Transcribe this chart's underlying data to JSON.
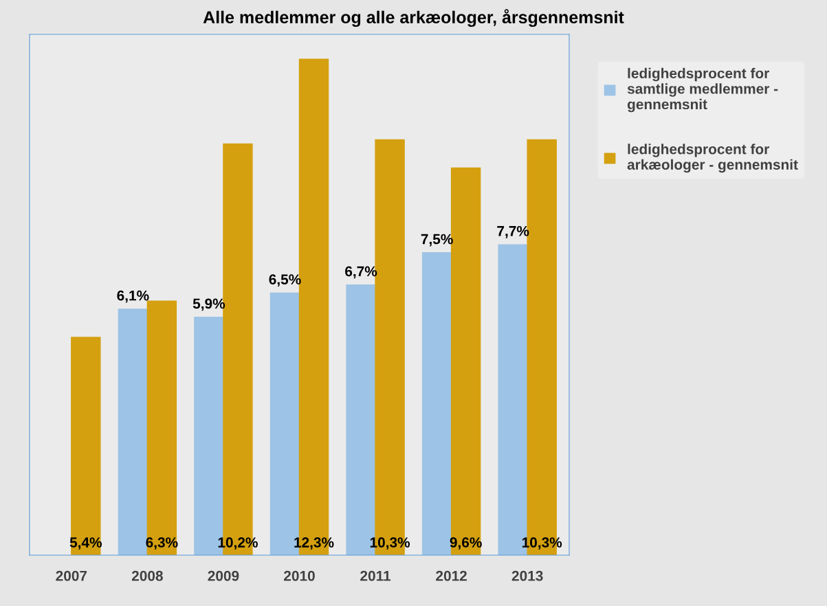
{
  "chart_data": {
    "type": "bar",
    "title": "Alle medlemmer og alle arkæologer, årsgennemsnit",
    "categories": [
      "2007",
      "2008",
      "2009",
      "2010",
      "2011",
      "2012",
      "2013"
    ],
    "series": [
      {
        "name": "ledighedsprocent for samtlige medlemmer - gennemsnit",
        "color": "#9dc3e6",
        "values": [
          null,
          6.1,
          5.9,
          6.5,
          6.7,
          7.5,
          7.7
        ],
        "value_labels": [
          null,
          "6,1%",
          "5,9%",
          "6,5%",
          "6,7%",
          "7,5%",
          "7,7%"
        ]
      },
      {
        "name": "ledighedsprocent for arkæologer - gennemsnit",
        "color": "#d4a00f",
        "values": [
          5.4,
          6.3,
          10.2,
          12.3,
          10.3,
          9.6,
          10.3
        ],
        "value_labels": [
          "5,4%",
          "6,3%",
          "10,2%",
          "12,3%",
          "10,3%",
          "9,6%",
          "10,3%"
        ]
      }
    ],
    "tick_labels": "x",
    "legend": "right",
    "grid": false
  }
}
